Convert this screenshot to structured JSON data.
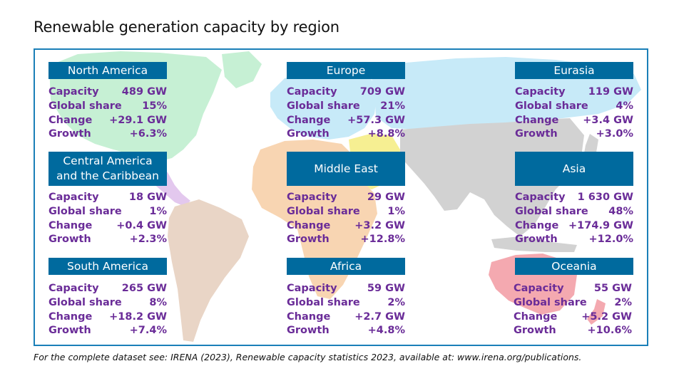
{
  "title": "Renewable generation capacity by region",
  "labels": {
    "capacity": "Capacity",
    "share": "Global share",
    "change": "Change",
    "growth": "Growth"
  },
  "regions": [
    {
      "name": "North America",
      "capacity": "489 GW",
      "share": "15%",
      "change": "+29.1 GW",
      "growth": "+6.3%"
    },
    {
      "name": "Europe",
      "capacity": "709 GW",
      "share": "21%",
      "change": "+57.3 GW",
      "growth": "+8.8%"
    },
    {
      "name": "Eurasia",
      "capacity": "119 GW",
      "share": "4%",
      "change": "+3.4 GW",
      "growth": "+3.0%"
    },
    {
      "name": "Central America and the Caribbean",
      "capacity": "18 GW",
      "share": "1%",
      "change": "+0.4 GW",
      "growth": "+2.3%"
    },
    {
      "name": "Middle East",
      "capacity": "29 GW",
      "share": "1%",
      "change": "+3.2 GW",
      "growth": "+12.8%"
    },
    {
      "name": "Asia",
      "capacity": "1 630 GW",
      "share": "48%",
      "change": "+174.9 GW",
      "growth": "+12.0%"
    },
    {
      "name": "South America",
      "capacity": "265 GW",
      "share": "8%",
      "change": "+18.2 GW",
      "growth": "+7.4%"
    },
    {
      "name": "Africa",
      "capacity": "59 GW",
      "share": "2%",
      "change": "+2.7 GW",
      "growth": "+4.8%"
    },
    {
      "name": "Oceania",
      "capacity": "55 GW",
      "share": "2%",
      "change": "+5.2 GW",
      "growth": "+10.6%"
    }
  ],
  "footnote": "For the complete dataset see: IRENA (2023), Renewable capacity statistics 2023, available at: www.irena.org/publications.",
  "colors": {
    "header_bg": "#006a9e",
    "stat_text": "#6a2c98",
    "frame": "#1a7fb8",
    "north_america": "#c6f0d4",
    "central_america": "#e3c8ee",
    "south_america": "#e9d5c6",
    "europe": "#c7eaf8",
    "eurasia": "#c7eaf8",
    "middle_east": "#f6ef92",
    "africa": "#f8d5b2",
    "asia": "#d2d2d2",
    "oceania": "#f4a9b0"
  }
}
